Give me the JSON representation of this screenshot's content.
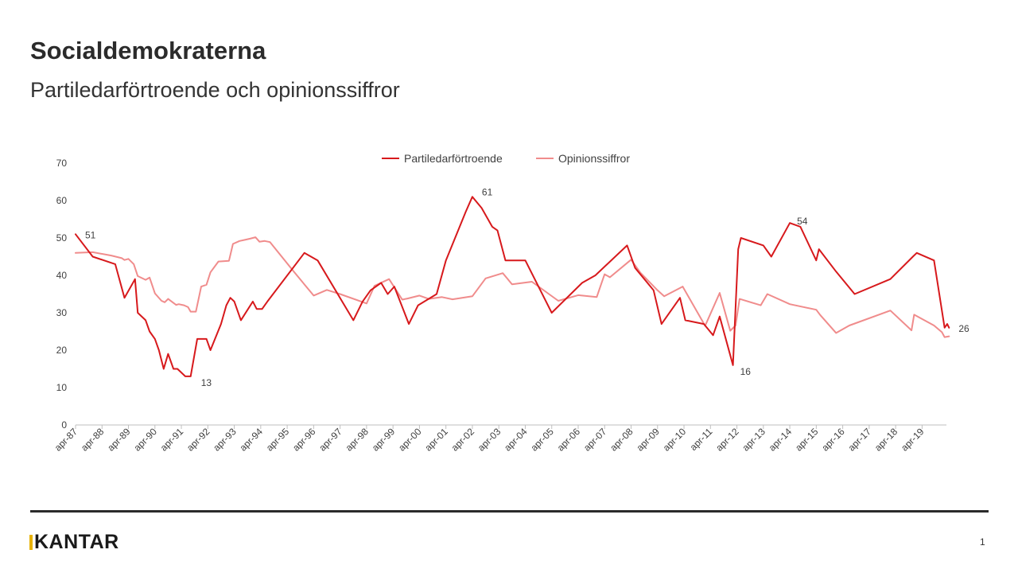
{
  "slide": {
    "title": "Socialdemokraterna",
    "subtitle": "Partiledarförtroende och opinionssiffror",
    "brand": "KANTAR",
    "page_number": "1",
    "colors": {
      "brand_accent": "#e7b200",
      "rule": "#2b2b2b"
    }
  },
  "chart_data": {
    "type": "line",
    "title": "",
    "xlabel": "",
    "ylabel": "",
    "ylim": [
      0,
      70
    ],
    "yticks": [
      "0",
      "10",
      "20",
      "30",
      "40",
      "50",
      "60",
      "70"
    ],
    "xlim": [
      1987.25,
      2020.17
    ],
    "xticks": [
      "apr-87",
      "apr-88",
      "apr-89",
      "apr-90",
      "apr-91",
      "apr-92",
      "apr-93",
      "apr-94",
      "apr-95",
      "apr-96",
      "apr-97",
      "apr-98",
      "apr-99",
      "apr-00",
      "apr-01",
      "apr-02",
      "apr-03",
      "apr-04",
      "apr-05",
      "apr-06",
      "apr-07",
      "apr-08",
      "apr-09",
      "apr-10",
      "apr-11",
      "apr-12",
      "apr-13",
      "apr-14",
      "apr-15",
      "apr-16",
      "apr-17",
      "apr-18",
      "apr-19"
    ],
    "xtick_values": [
      1987.25,
      1988.25,
      1989.25,
      1990.25,
      1991.25,
      1992.25,
      1993.25,
      1994.25,
      1995.25,
      1996.25,
      1997.25,
      1998.25,
      1999.25,
      2000.25,
      2001.25,
      2002.25,
      2003.25,
      2004.25,
      2005.25,
      2006.25,
      2007.25,
      2008.25,
      2009.25,
      2010.25,
      2011.25,
      2012.25,
      2013.25,
      2014.25,
      2015.25,
      2016.25,
      2017.25,
      2018.25,
      2019.25
    ],
    "grid": false,
    "legend": "top-center",
    "series": [
      {
        "name": "Partiledarförtroende",
        "color": "#d7191c",
        "points": [
          [
            1987.25,
            51
          ],
          [
            1987.9,
            45
          ],
          [
            1988.75,
            43
          ],
          [
            1989.1,
            34
          ],
          [
            1989.5,
            39
          ],
          [
            1989.6,
            30
          ],
          [
            1989.9,
            28
          ],
          [
            1990.05,
            25
          ],
          [
            1990.25,
            23
          ],
          [
            1990.4,
            20
          ],
          [
            1990.58,
            15
          ],
          [
            1990.75,
            19
          ],
          [
            1990.95,
            15
          ],
          [
            1991.1,
            15
          ],
          [
            1991.4,
            13
          ],
          [
            1991.6,
            13
          ],
          [
            1991.85,
            23
          ],
          [
            1992.2,
            23
          ],
          [
            1992.35,
            20
          ],
          [
            1992.75,
            27
          ],
          [
            1992.95,
            32
          ],
          [
            1993.1,
            34
          ],
          [
            1993.25,
            33
          ],
          [
            1993.5,
            28
          ],
          [
            1993.95,
            33
          ],
          [
            1994.1,
            31
          ],
          [
            1994.3,
            31
          ],
          [
            1994.5,
            33
          ],
          [
            1995.9,
            46
          ],
          [
            1996.4,
            44
          ],
          [
            1997.75,
            28
          ],
          [
            1998.1,
            33
          ],
          [
            1998.4,
            36
          ],
          [
            1998.8,
            38
          ],
          [
            1999.05,
            35
          ],
          [
            1999.3,
            37
          ],
          [
            1999.85,
            27
          ],
          [
            2000.2,
            32
          ],
          [
            2000.9,
            35
          ],
          [
            2001.25,
            44
          ],
          [
            2002.0,
            57
          ],
          [
            2002.25,
            61
          ],
          [
            2002.6,
            58
          ],
          [
            2003.0,
            53
          ],
          [
            2003.2,
            52
          ],
          [
            2003.5,
            44
          ],
          [
            2004.25,
            44
          ],
          [
            2005.25,
            30
          ],
          [
            2006.4,
            38
          ],
          [
            2006.9,
            40
          ],
          [
            2008.1,
            48
          ],
          [
            2008.4,
            42
          ],
          [
            2009.1,
            36
          ],
          [
            2009.4,
            27
          ],
          [
            2010.1,
            34
          ],
          [
            2010.3,
            28
          ],
          [
            2011.0,
            27
          ],
          [
            2011.35,
            24
          ],
          [
            2011.6,
            29
          ],
          [
            2012.1,
            16
          ],
          [
            2012.3,
            47
          ],
          [
            2012.4,
            50
          ],
          [
            2013.25,
            48
          ],
          [
            2013.55,
            45
          ],
          [
            2014.25,
            54
          ],
          [
            2014.65,
            53
          ],
          [
            2015.25,
            44
          ],
          [
            2015.35,
            47
          ],
          [
            2016.0,
            41
          ],
          [
            2016.7,
            35
          ],
          [
            2018.05,
            39
          ],
          [
            2018.9,
            45
          ],
          [
            2019.05,
            46
          ],
          [
            2019.7,
            44
          ],
          [
            2020.1,
            26
          ],
          [
            2020.2,
            27
          ],
          [
            2020.27,
            26
          ]
        ],
        "annotations": [
          {
            "x": 1987.25,
            "y": 51,
            "label": "51"
          },
          {
            "x": 1991.6,
            "y": 13,
            "label": "13"
          },
          {
            "x": 2002.25,
            "y": 61,
            "label": "61"
          },
          {
            "x": 2012.1,
            "y": 16,
            "label": "16"
          },
          {
            "x": 2014.25,
            "y": 54,
            "label": "54"
          },
          {
            "x": 2020.27,
            "y": 26,
            "label": "26"
          }
        ]
      },
      {
        "name": "Opinionssiffror",
        "color": "#f08c8c",
        "points": [
          [
            1987.25,
            46
          ],
          [
            1987.9,
            46.2
          ],
          [
            1988.6,
            45.3
          ],
          [
            1989.0,
            44.6
          ],
          [
            1989.1,
            44.1
          ],
          [
            1989.25,
            44.4
          ],
          [
            1989.45,
            43
          ],
          [
            1989.6,
            39.8
          ],
          [
            1989.9,
            38.8
          ],
          [
            1990.05,
            39.4
          ],
          [
            1990.25,
            35.2
          ],
          [
            1990.5,
            33.2
          ],
          [
            1990.62,
            32.8
          ],
          [
            1990.75,
            33.7
          ],
          [
            1991.05,
            32.1
          ],
          [
            1991.15,
            32.3
          ],
          [
            1991.35,
            32
          ],
          [
            1991.5,
            31.5
          ],
          [
            1991.6,
            30.3
          ],
          [
            1991.8,
            30.3
          ],
          [
            1992.0,
            37
          ],
          [
            1992.2,
            37.5
          ],
          [
            1992.35,
            40.8
          ],
          [
            1992.65,
            43.7
          ],
          [
            1993.05,
            43.9
          ],
          [
            1993.2,
            48.4
          ],
          [
            1993.45,
            49.2
          ],
          [
            1993.65,
            49.5
          ],
          [
            1993.85,
            49.8
          ],
          [
            1994.05,
            50.2
          ],
          [
            1994.2,
            49
          ],
          [
            1994.4,
            49.2
          ],
          [
            1994.6,
            48.9
          ],
          [
            1995.5,
            41
          ],
          [
            1996.25,
            34.6
          ],
          [
            1996.75,
            36.1
          ],
          [
            1997.25,
            35
          ],
          [
            1998.25,
            32.5
          ],
          [
            1998.55,
            37.2
          ],
          [
            1999.1,
            39
          ],
          [
            1999.6,
            33.5
          ],
          [
            1999.8,
            33.8
          ],
          [
            2000.25,
            34.6
          ],
          [
            2000.6,
            33.7
          ],
          [
            2001.1,
            34.2
          ],
          [
            2001.5,
            33.6
          ],
          [
            2002.25,
            34.4
          ],
          [
            2002.75,
            39.2
          ],
          [
            2003.4,
            40.6
          ],
          [
            2003.75,
            37.6
          ],
          [
            2004.5,
            38.3
          ],
          [
            2005.5,
            33.2
          ],
          [
            2006.25,
            34.7
          ],
          [
            2006.95,
            34.2
          ],
          [
            2007.25,
            40.3
          ],
          [
            2007.45,
            39.5
          ],
          [
            2008.25,
            44.2
          ],
          [
            2008.6,
            40.7
          ],
          [
            2009.25,
            36
          ],
          [
            2009.5,
            34.4
          ],
          [
            2010.2,
            37
          ],
          [
            2011.05,
            26.5
          ],
          [
            2011.6,
            35.3
          ],
          [
            2012.0,
            25.2
          ],
          [
            2012.2,
            26.6
          ],
          [
            2012.35,
            33.7
          ],
          [
            2013.15,
            32
          ],
          [
            2013.4,
            35
          ],
          [
            2014.25,
            32.3
          ],
          [
            2015.25,
            30.8
          ],
          [
            2015.4,
            29.4
          ],
          [
            2016.0,
            24.6
          ],
          [
            2016.5,
            26.6
          ],
          [
            2018.05,
            30.6
          ],
          [
            2018.85,
            25.3
          ],
          [
            2018.95,
            29.5
          ],
          [
            2019.7,
            26.6
          ],
          [
            2020.0,
            24.8
          ],
          [
            2020.1,
            23.5
          ],
          [
            2020.27,
            23.7
          ]
        ]
      }
    ]
  }
}
